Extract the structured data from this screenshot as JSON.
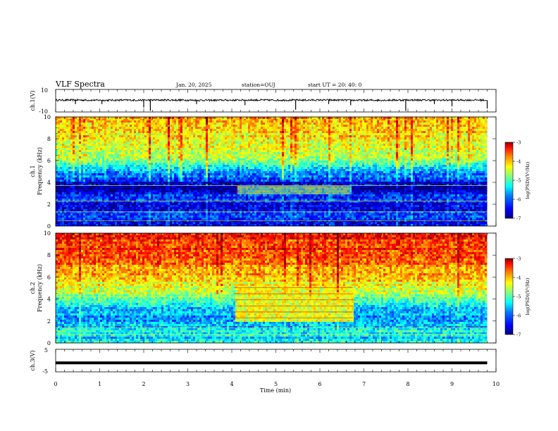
{
  "header": {
    "title": "VLF Spectra",
    "date": "Jan. 20, 2025",
    "station": "station=OUJ",
    "start_ut": "start UT =  20: 40: 0"
  },
  "colorbar_label": "log(PSD)(V²/Hz)",
  "colors": {
    "spectrogram_scale": [
      "#00007f",
      "#0000ff",
      "#007fff",
      "#00ffff",
      "#7fff7f",
      "#ffff00",
      "#ff7f00",
      "#ff0000",
      "#7f0000"
    ]
  },
  "chart_data": [
    {
      "type": "line",
      "id": "ch1-waveform",
      "ylabel": "ch.1(V)",
      "ylim": [
        -10,
        10
      ],
      "ytick_labels": [
        "-10",
        "10"
      ],
      "x": [
        0.0,
        0.5,
        1.0,
        1.5,
        2.0,
        2.5,
        3.0,
        3.5,
        4.0,
        4.5,
        5.0,
        5.5,
        6.0,
        6.5,
        7.0,
        7.5,
        8.0,
        8.5,
        9.0,
        9.5,
        9.8
      ],
      "y": [
        0.5,
        0.6,
        0.4,
        0.5,
        0.5,
        0.6,
        0.5,
        0.4,
        0.5,
        0.6,
        0.5,
        0.5,
        0.6,
        0.5,
        0.4,
        0.5,
        0.6,
        0.5,
        0.5,
        0.6,
        0.5
      ],
      "spikes": [
        {
          "t": 0.45,
          "v": -3
        },
        {
          "t": 1.05,
          "v": -3
        },
        {
          "t": 2.0,
          "v": -6
        },
        {
          "t": 2.15,
          "v": -9
        },
        {
          "t": 3.2,
          "v": -3
        },
        {
          "t": 4.3,
          "v": -4
        },
        {
          "t": 5.45,
          "v": -8
        },
        {
          "t": 6.2,
          "v": -3
        },
        {
          "t": 6.7,
          "v": -4
        },
        {
          "t": 7.95,
          "v": -9
        },
        {
          "t": 8.6,
          "v": -3
        },
        {
          "t": 9.0,
          "v": -5
        },
        {
          "t": 9.8,
          "v": -7
        }
      ]
    },
    {
      "type": "heatmap",
      "id": "ch1-spectrogram",
      "ylabel": "ch.1\nFrequency (kHz)",
      "ylim": [
        0,
        10
      ],
      "ytick_labels": [
        "0",
        "2",
        "4",
        "6",
        "8",
        "10"
      ],
      "xlim": [
        0,
        9.8
      ],
      "z_colorbar_range": [
        -7,
        -3
      ],
      "colorbar_ticks": [
        "-3",
        "-4",
        "-5",
        "-6",
        "-7"
      ],
      "freq_profile_khz": [
        0,
        0.5,
        1,
        1.5,
        2,
        2.5,
        3,
        3.5,
        4,
        4.5,
        5,
        5.5,
        6,
        7,
        8,
        9,
        10
      ],
      "freq_profile_log_psd": [
        -6.4,
        -6.6,
        -6.2,
        -6.5,
        -6.8,
        -6.3,
        -6.5,
        -6.9,
        -6.6,
        -6.1,
        -6.0,
        -5.6,
        -5.0,
        -4.7,
        -4.5,
        -4.4,
        -4.3
      ],
      "lines_khz": [
        0.5,
        1.3,
        2.3,
        3.7
      ],
      "feature": {
        "t_start": 4.1,
        "t_end": 6.7,
        "f_low": 2.9,
        "f_high": 3.7,
        "log_psd": -5.4
      }
    },
    {
      "type": "heatmap",
      "id": "ch2-spectrogram",
      "ylabel": "ch.2\nFrequency (kHz)",
      "ylim": [
        0,
        10
      ],
      "ytick_labels": [
        "0",
        "2",
        "4",
        "6",
        "8",
        "10"
      ],
      "xlim": [
        0,
        9.8
      ],
      "z_colorbar_range": [
        -7,
        -3
      ],
      "colorbar_ticks": [
        "-3",
        "-4",
        "-5",
        "-6",
        "-7"
      ],
      "freq_profile_khz": [
        0,
        0.5,
        1,
        1.5,
        2,
        2.5,
        3,
        3.5,
        4,
        4.5,
        5,
        5.5,
        6,
        7,
        8,
        9,
        10
      ],
      "freq_profile_log_psd": [
        -5.4,
        -5.6,
        -5.5,
        -5.8,
        -5.9,
        -5.8,
        -5.7,
        -5.6,
        -5.2,
        -4.9,
        -4.7,
        -4.5,
        -4.3,
        -4.0,
        -3.8,
        -3.7,
        -3.6
      ],
      "lines_khz": [
        0.8,
        1.4,
        4.2
      ],
      "feature": {
        "t_start": 4.05,
        "t_end": 6.75,
        "f_low": 2.0,
        "f_high": 5.3,
        "log_psd": -4.6
      }
    },
    {
      "type": "line",
      "id": "ch3-waveform",
      "ylabel": "ch.3(V)",
      "ylim": [
        -5,
        5
      ],
      "ytick_labels": [
        "-5",
        "5"
      ],
      "x": [
        0,
        9.8
      ],
      "y": [
        -1,
        -1
      ]
    }
  ],
  "x_axis": {
    "xlabel": "Time (min)",
    "xlim": [
      0,
      10
    ],
    "tick_labels": [
      "0",
      "1",
      "2",
      "3",
      "4",
      "5",
      "6",
      "7",
      "8",
      "9",
      "10"
    ]
  }
}
